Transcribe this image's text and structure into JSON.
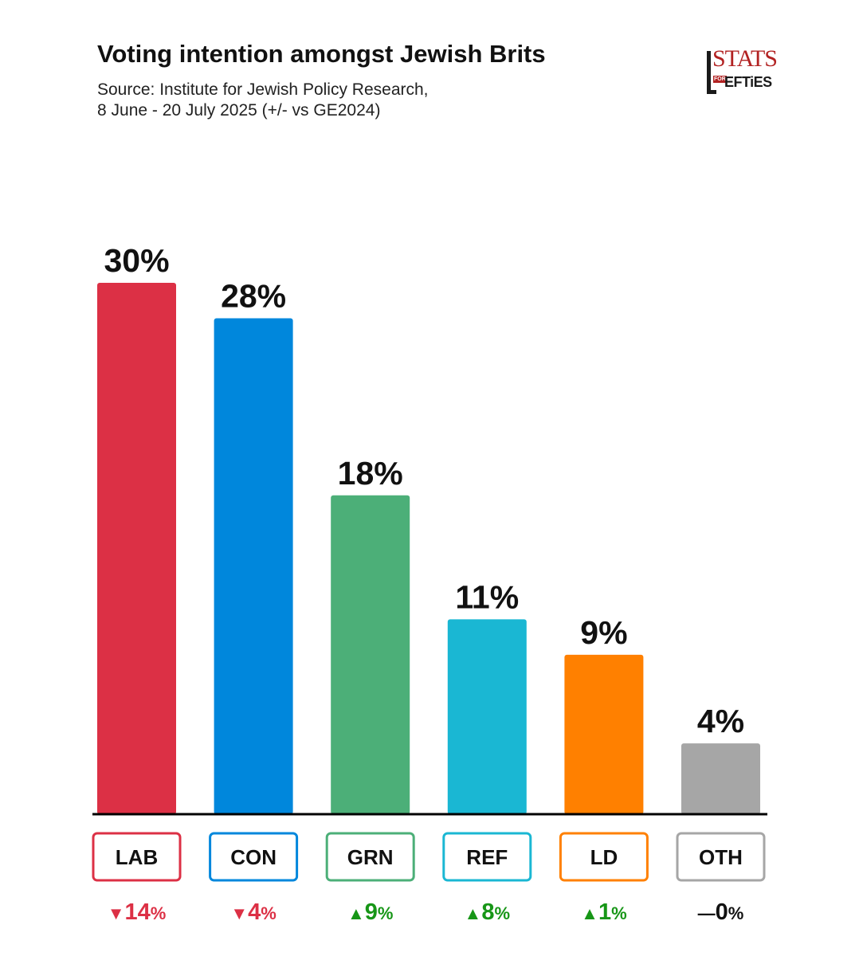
{
  "title": "Voting intention amongst Jewish Brits",
  "subtitle_line1": "Source: Institute for Jewish Policy Research,",
  "subtitle_line2": "8 June - 20 July 2025 (+/- vs GE2024)",
  "logo": {
    "top": "STATS",
    "small": "FOR",
    "bottom": "EFTiES"
  },
  "chart_data": {
    "type": "bar",
    "categories": [
      "LAB",
      "CON",
      "GRN",
      "REF",
      "LD",
      "OTH"
    ],
    "values": [
      30,
      28,
      18,
      11,
      9,
      4
    ],
    "value_labels": [
      "30%",
      "28%",
      "18%",
      "11%",
      "9%",
      "4%"
    ],
    "changes": [
      -14,
      -4,
      9,
      8,
      1,
      0
    ],
    "change_labels": [
      "14",
      "4",
      "9",
      "8",
      "1",
      "0"
    ],
    "change_unit": "%",
    "change_markers": [
      "▼",
      "▼",
      "▲",
      "▲",
      "▲",
      "—"
    ],
    "colors": [
      "#dc3045",
      "#0087dc",
      "#4caf78",
      "#1ab7d3",
      "#ff8000",
      "#a6a6a6"
    ],
    "change_colors": {
      "down": "#dc3045",
      "up": "#179617",
      "none": "#111111"
    },
    "ylim": [
      0,
      30
    ],
    "grid": false,
    "xlabel": "",
    "ylabel": ""
  }
}
